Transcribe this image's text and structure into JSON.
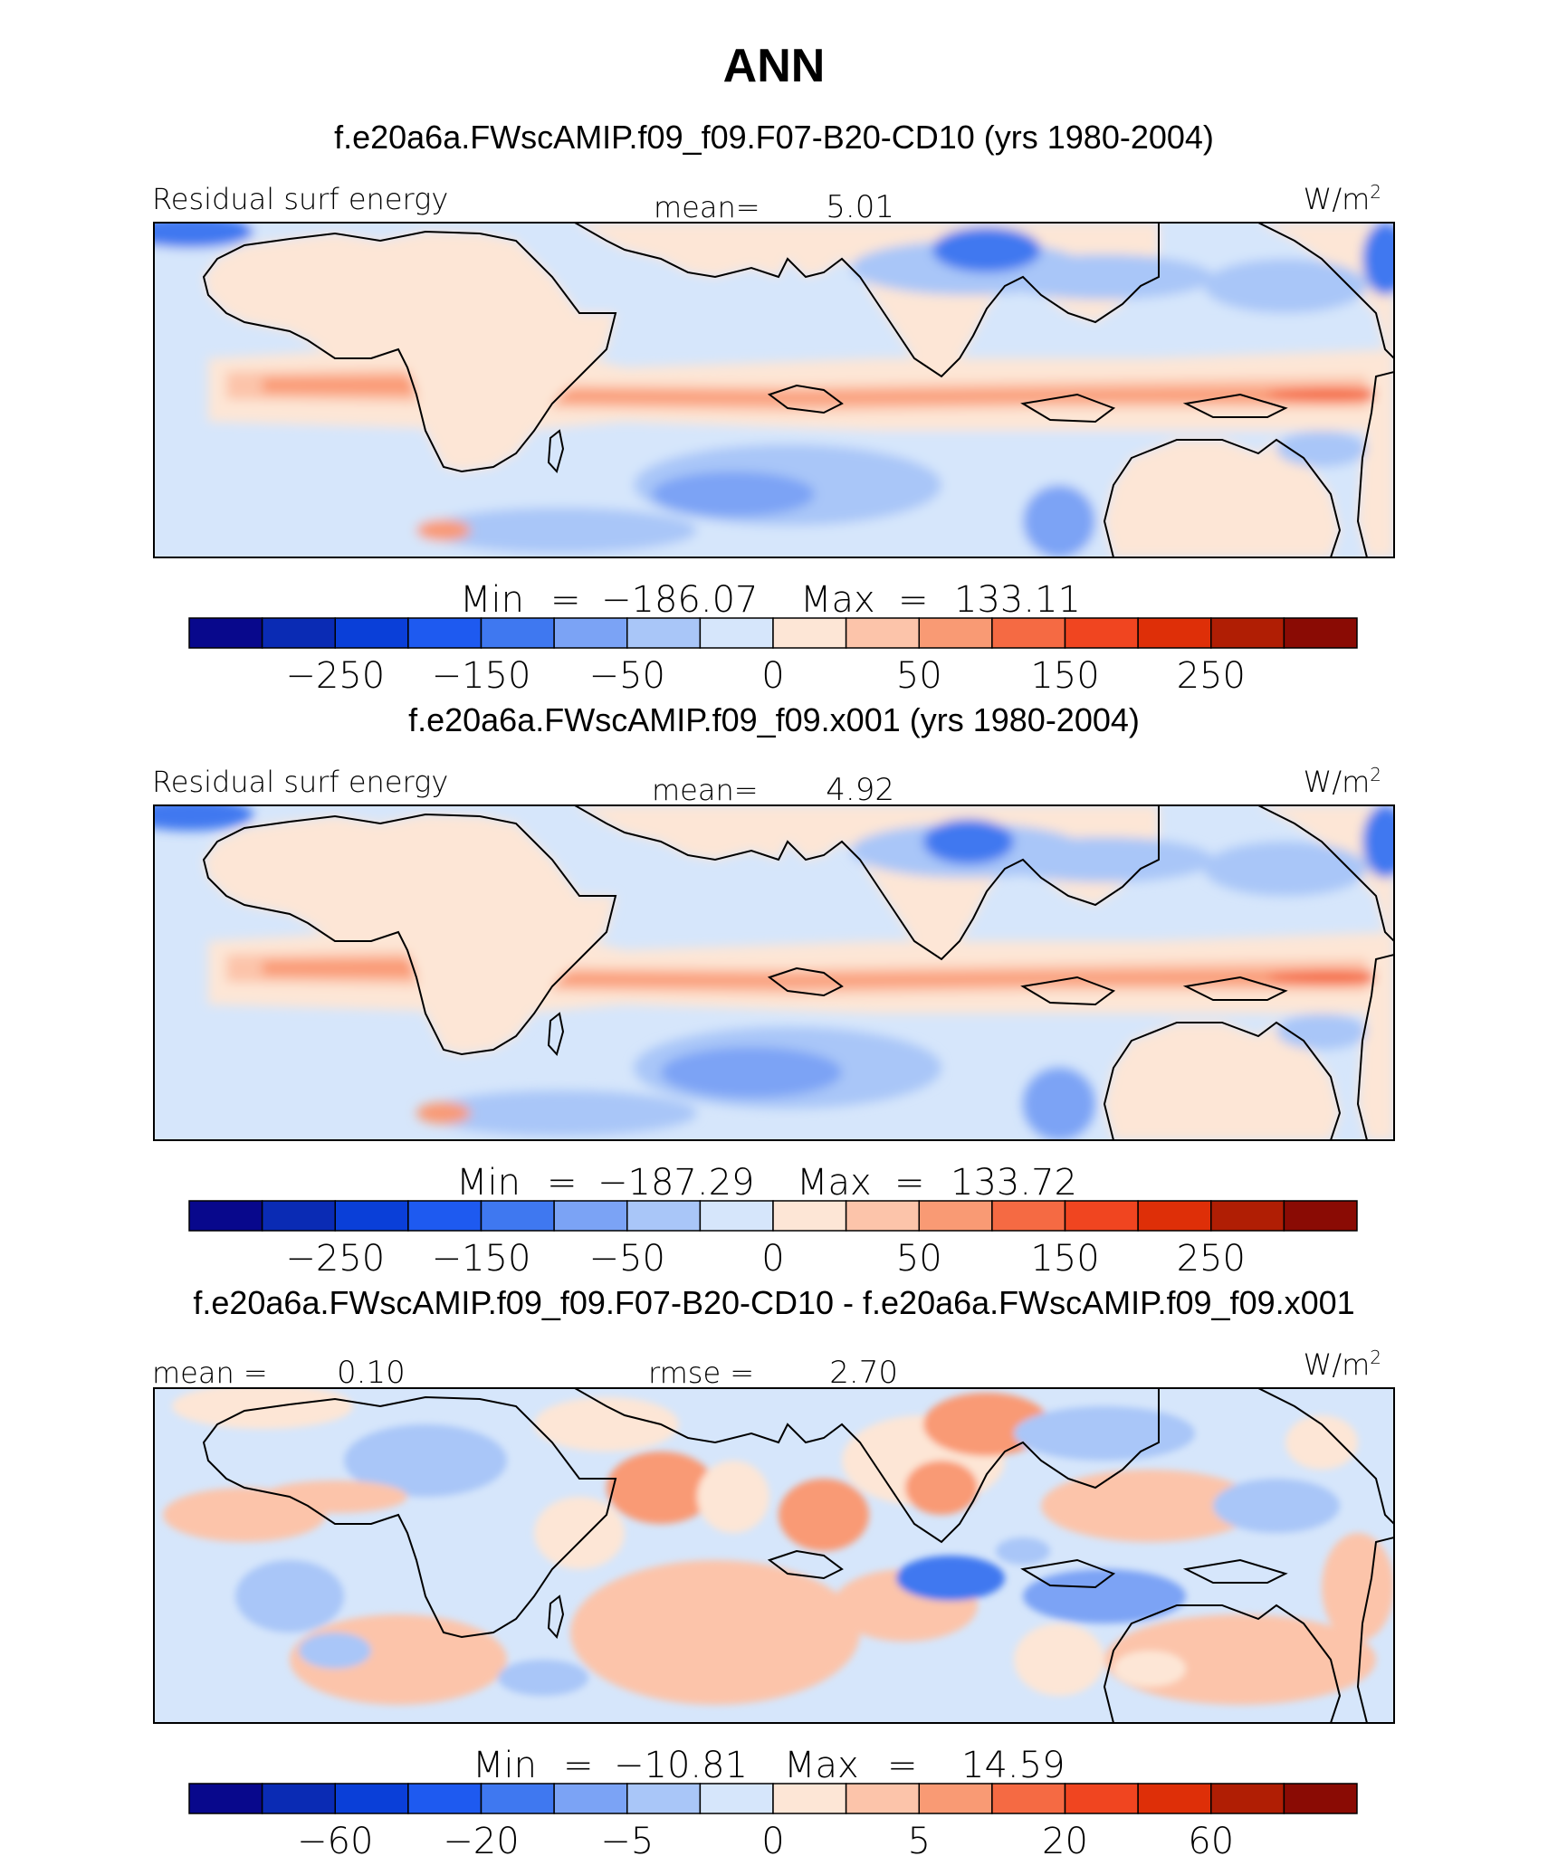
{
  "figure": {
    "title": "ANN"
  },
  "colors": {
    "scale": [
      "#08088c",
      "#0a2bb4",
      "#0a3fd8",
      "#1e5af0",
      "#3f78f0",
      "#7ba3f5",
      "#a9c6f8",
      "#d6e6fb",
      "#fde6d6",
      "#fcc4aa",
      "#f99a74",
      "#f56a43",
      "#f04520",
      "#de2f08",
      "#b01e04",
      "#8a0b04"
    ]
  },
  "chart_data": [
    {
      "type": "heatmap",
      "title": "f.e20a6a.FWscAMIP.f09_f09.F07-B20-CD10 (yrs 1980-2004)",
      "left_label": "Residual surf energy",
      "stat_label": "mean=",
      "stat_value": "5.01",
      "units_base": "W/m",
      "units_exp": "2",
      "min_label": "Min",
      "min_value": "−186.07",
      "max_label": "Max",
      "max_value": "133.11",
      "colorbar_ticks": [
        "−250",
        "−150",
        "−50",
        "0",
        "50",
        "150",
        "250"
      ],
      "field_id": 1
    },
    {
      "type": "heatmap",
      "title": "f.e20a6a.FWscAMIP.f09_f09.x001 (yrs 1980-2004)",
      "left_label": "Residual surf energy",
      "stat_label": "mean=",
      "stat_value": "4.92",
      "units_base": "W/m",
      "units_exp": "2",
      "min_label": "Min",
      "min_value": "−187.29",
      "max_label": "Max",
      "max_value": "133.72",
      "colorbar_ticks": [
        "−250",
        "−150",
        "−50",
        "0",
        "50",
        "150",
        "250"
      ],
      "field_id": 2
    },
    {
      "type": "heatmap",
      "title": "f.e20a6a.FWscAMIP.f09_f09.F07-B20-CD10 - f.e20a6a.FWscAMIP.f09_f09.x001",
      "left_label": "mean =",
      "left_value": "0.10",
      "stat_label": "rmse =",
      "stat_value": "2.70",
      "units_base": "W/m",
      "units_exp": "2",
      "min_label": "Min",
      "min_value": "−10.81",
      "max_label": "Max",
      "max_value": "14.59",
      "colorbar_ticks": [
        "−60",
        "−20",
        "−5",
        "0",
        "5",
        "20",
        "60"
      ],
      "field_id": 3
    }
  ]
}
